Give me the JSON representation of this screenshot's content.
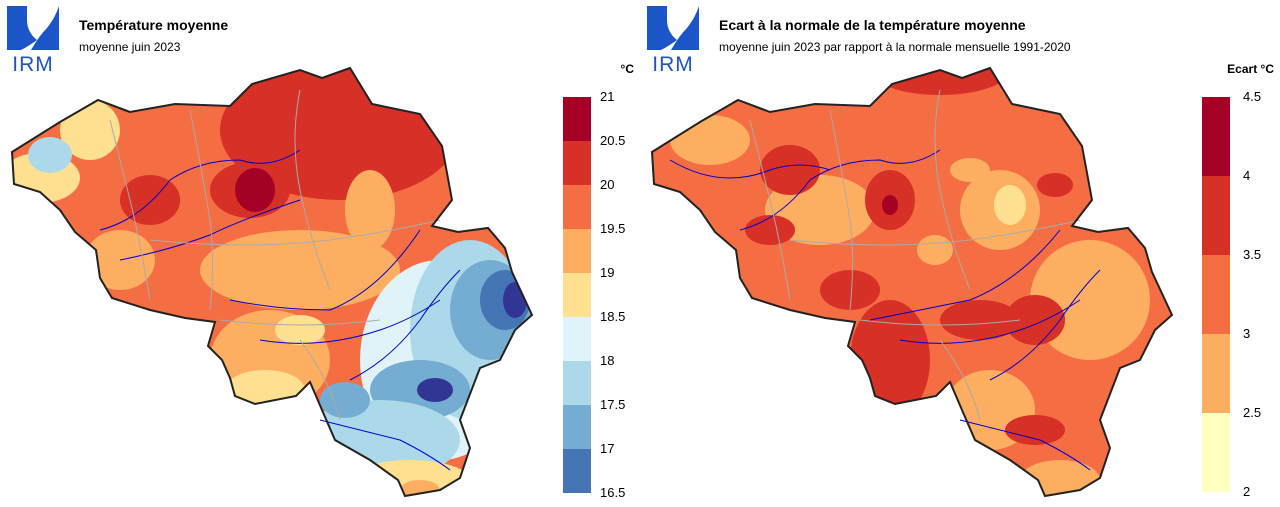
{
  "logo": {
    "text": "IRM",
    "brand_color": "#1c55c8"
  },
  "panels": [
    {
      "title": "Température moyenne",
      "subtitle": "moyenne juin 2023",
      "unit": "°C",
      "legend": {
        "ticks": [
          "21",
          "20.5",
          "20",
          "19.5",
          "19",
          "18.5",
          "18",
          "17.5",
          "17",
          "16.5"
        ],
        "colors": [
          "#a50026",
          "#d73027",
          "#f46d43",
          "#fdae61",
          "#fee090",
          "#e0f3f8",
          "#abd9e9",
          "#74add1",
          "#4575b4",
          "#313695"
        ]
      }
    },
    {
      "title": "Ecart à la normale de la température moyenne",
      "subtitle": "moyenne juin 2023 par rapport à la normale mensuelle 1991-2020",
      "unit": "Ecart °C",
      "legend": {
        "ticks": [
          "4.5",
          "4",
          "3.5",
          "3",
          "2.5",
          "2"
        ],
        "colors": [
          "#a50026",
          "#d73027",
          "#f46d43",
          "#fdae61",
          "#ffffbf"
        ]
      }
    }
  ]
}
